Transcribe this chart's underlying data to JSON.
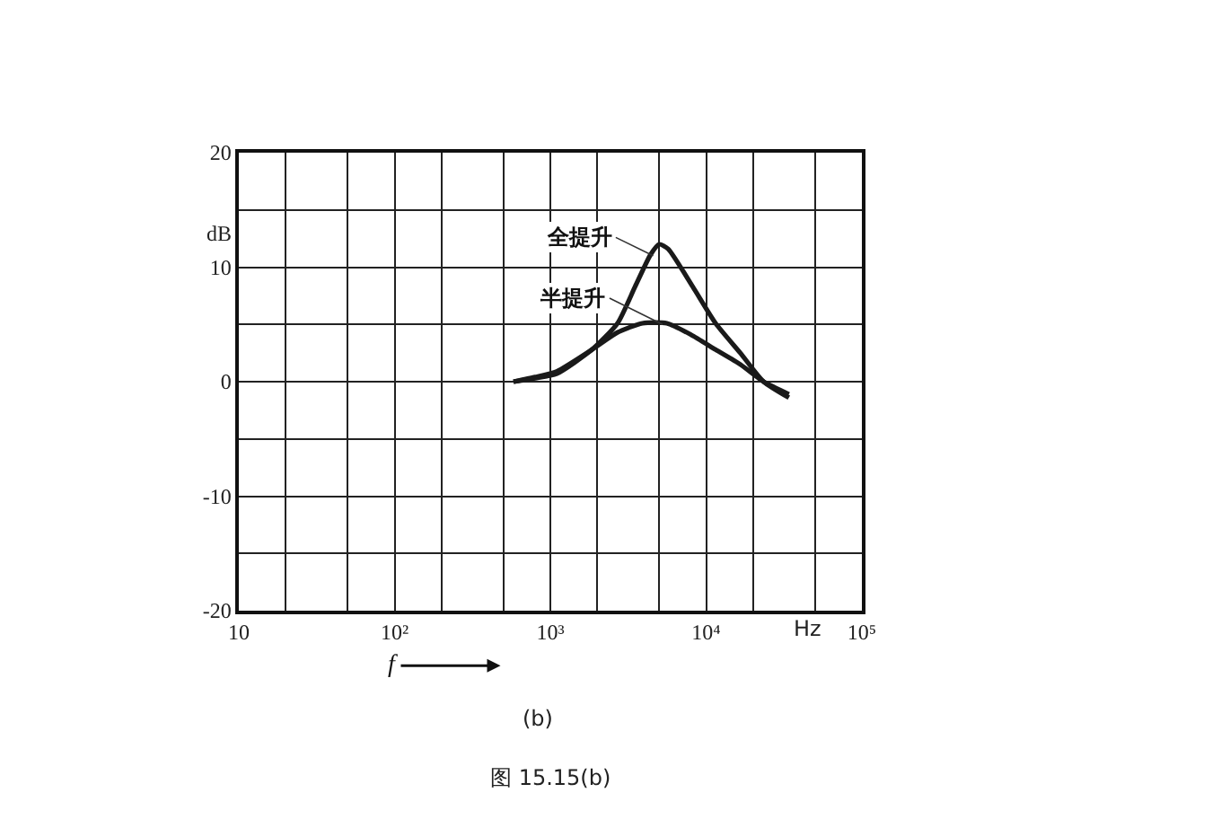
{
  "chart_data": {
    "type": "line",
    "xlabel": "f",
    "ylabel": "dB",
    "log": "x",
    "grid": true,
    "legend": false,
    "marker": "none",
    "line_style": "solid",
    "xlim": [
      10,
      100000
    ],
    "ylim": [
      -20,
      20
    ],
    "xticks": [
      {
        "value": 10,
        "label": "10"
      },
      {
        "value": 20,
        "label": null
      },
      {
        "value": 50,
        "label": null
      },
      {
        "value": 100,
        "label": "10²"
      },
      {
        "value": 200,
        "label": null
      },
      {
        "value": 500,
        "label": null
      },
      {
        "value": 1000,
        "label": "10³"
      },
      {
        "value": 2000,
        "label": null
      },
      {
        "value": 5000,
        "label": null
      },
      {
        "value": 10000,
        "label": "10⁴"
      },
      {
        "value": 20000,
        "label": null
      },
      {
        "value": 50000,
        "label": null
      },
      {
        "value": 100000,
        "label": "10⁵"
      }
    ],
    "yticks": [
      -20,
      {
        "value": -15,
        "label": null
      },
      -10,
      {
        "value": -5,
        "label": null
      },
      0,
      {
        "value": 5,
        "label": null
      },
      10,
      {
        "value": 15,
        "label": null
      },
      20
    ],
    "series": [
      {
        "name": "全提升",
        "color": "#1a1a1a",
        "x": [
          580,
          800,
          1100,
          1850,
          2700,
          3500,
          4400,
          5000,
          5700,
          8200,
          11500,
          16600,
          23400,
          34000
        ],
        "values": [
          0,
          0.3,
          0.7,
          2.8,
          5.1,
          8.3,
          11.1,
          12,
          11.6,
          8.3,
          5.1,
          2.5,
          0,
          -1.4
        ]
      },
      {
        "name": "半提升",
        "color": "#1a1a1a",
        "x": [
          580,
          800,
          1100,
          1850,
          2700,
          3900,
          5600,
          8000,
          11500,
          16600,
          23400,
          34000
        ],
        "values": [
          0,
          0.4,
          0.9,
          2.8,
          4.3,
          5.1,
          5.1,
          4.1,
          2.8,
          1.5,
          0,
          -1.1
        ]
      }
    ],
    "annotations": [
      "Hz",
      "(b)",
      "图 15.15(b)"
    ]
  }
}
